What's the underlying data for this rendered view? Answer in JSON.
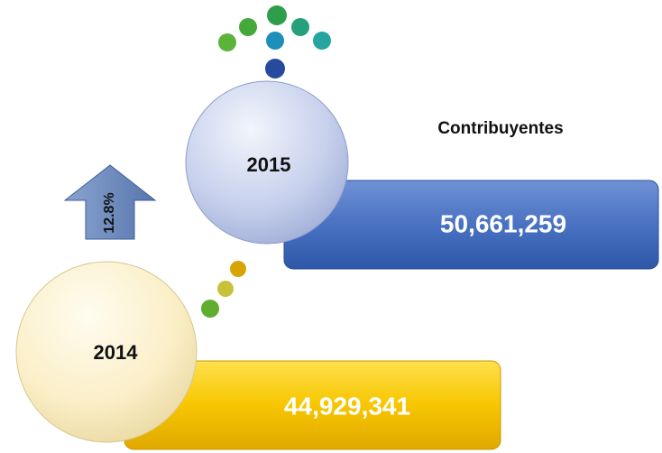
{
  "title": "Contribuyentes",
  "growth": "12.8%",
  "items": [
    {
      "year": "2015",
      "value": "50,661,259"
    },
    {
      "year": "2014",
      "value": "44,929,341"
    }
  ]
}
